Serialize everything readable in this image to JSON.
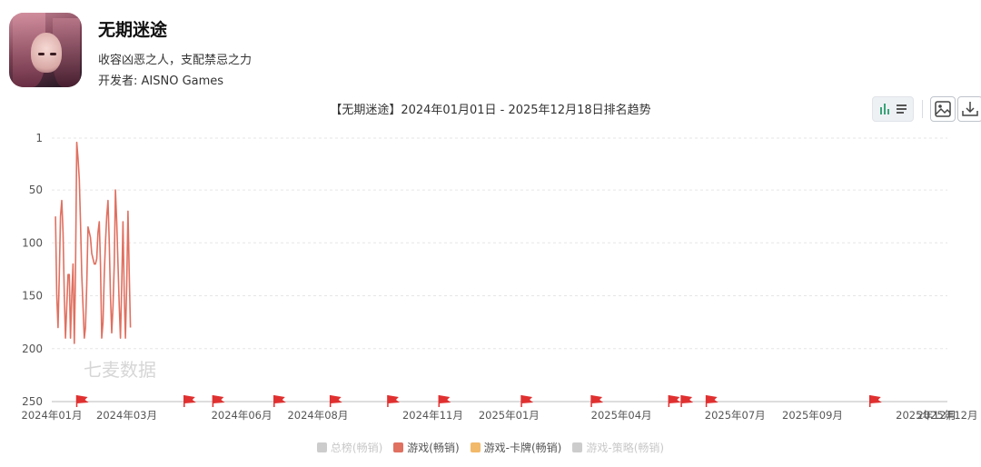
{
  "app": {
    "name": "无期迷途",
    "slogan": "收容凶恶之人，支配禁忌之力",
    "developer": "开发者: AISNO Games"
  },
  "watermark": "七麦数据",
  "colors": {
    "game_grossing": "#e07060",
    "card_grossing": "#f2b96a",
    "disabled": "#cccccc",
    "flag": "#e03030"
  },
  "icons": [
    "chart-type-toggle-icon",
    "save-image-icon",
    "download-icon"
  ],
  "chart_data": {
    "type": "line",
    "title": "【无期迷途】2024年01月01日 - 2025年12月18日排名趋势",
    "y_inverted": true,
    "ylim": [
      1,
      250
    ],
    "y_ticks": [
      "1",
      "50",
      "100",
      "150",
      "200",
      "250"
    ],
    "y_tick_values": [
      1,
      50,
      100,
      150,
      200,
      250
    ],
    "x_tick_labels": [
      "2024年01月",
      "2024年03月",
      "2024年06月",
      "2024年08月",
      "2024年11月",
      "2025年01月",
      "2025年04月",
      "2025年07月",
      "2025年09月",
      "2025年12月"
    ],
    "x_tick_dates": [
      "2024-01-01",
      "2024-03-01",
      "2024-06-01",
      "2024-08-01",
      "2024-11-01",
      "2025-01-01",
      "2025-04-01",
      "2025-07-01",
      "2025-09-01",
      "2025-12-01"
    ],
    "xlim": [
      "2024-01-01",
      "2025-12-18"
    ],
    "grid": true,
    "legend_position": "bottom",
    "event_flags": [
      "2024-01-21",
      "2024-04-16",
      "2024-05-09",
      "2024-06-27",
      "2024-08-11",
      "2024-09-26",
      "2024-11-06",
      "2025-01-11",
      "2025-03-08",
      "2025-05-09",
      "2025-05-19",
      "2025-06-08",
      "2025-10-17"
    ],
    "series": [
      {
        "name": "总榜(畅销)",
        "enabled": false,
        "color": "#cccccc",
        "points": []
      },
      {
        "name": "游戏(畅销)",
        "enabled": true,
        "color": "#e07060",
        "points": [
          [
            "2024-01-04",
            75
          ],
          [
            "2024-01-05",
            150
          ],
          [
            "2024-01-06",
            180
          ],
          [
            "2024-01-07",
            130
          ],
          [
            "2024-01-08",
            75
          ],
          [
            "2024-01-09",
            60
          ],
          [
            "2024-01-10",
            90
          ],
          [
            "2024-01-11",
            150
          ],
          [
            "2024-01-12",
            190
          ],
          [
            "2024-01-13",
            160
          ],
          [
            "2024-01-14",
            130
          ],
          [
            "2024-01-15",
            130
          ],
          [
            "2024-01-16",
            190
          ],
          [
            "2024-01-17",
            150
          ],
          [
            "2024-01-18",
            120
          ],
          [
            "2024-01-19",
            195
          ],
          [
            "2024-01-20",
            130
          ],
          [
            "2024-01-21",
            5
          ],
          [
            "2024-01-22",
            20
          ],
          [
            "2024-01-23",
            40
          ],
          [
            "2024-01-24",
            80
          ],
          [
            "2024-01-25",
            130
          ],
          [
            "2024-01-26",
            160
          ],
          [
            "2024-01-27",
            190
          ],
          [
            "2024-01-28",
            180
          ],
          [
            "2024-01-29",
            140
          ],
          [
            "2024-01-30",
            85
          ],
          [
            "2024-01-31",
            90
          ],
          [
            "2024-02-01",
            95
          ],
          [
            "2024-02-02",
            110
          ],
          [
            "2024-02-03",
            115
          ],
          [
            "2024-02-04",
            120
          ],
          [
            "2024-02-05",
            120
          ],
          [
            "2024-02-06",
            115
          ],
          [
            "2024-02-07",
            90
          ],
          [
            "2024-02-08",
            80
          ],
          [
            "2024-02-09",
            120
          ],
          [
            "2024-02-10",
            190
          ],
          [
            "2024-02-11",
            175
          ],
          [
            "2024-02-12",
            130
          ],
          [
            "2024-02-13",
            100
          ],
          [
            "2024-02-14",
            75
          ],
          [
            "2024-02-15",
            60
          ],
          [
            "2024-02-16",
            100
          ],
          [
            "2024-02-17",
            150
          ],
          [
            "2024-02-18",
            185
          ],
          [
            "2024-02-19",
            160
          ],
          [
            "2024-02-20",
            120
          ],
          [
            "2024-02-21",
            50
          ],
          [
            "2024-02-22",
            80
          ],
          [
            "2024-02-23",
            120
          ],
          [
            "2024-02-24",
            160
          ],
          [
            "2024-02-25",
            190
          ],
          [
            "2024-02-26",
            140
          ],
          [
            "2024-02-27",
            80
          ],
          [
            "2024-02-28",
            150
          ],
          [
            "2024-02-29",
            190
          ],
          [
            "2024-03-01",
            140
          ],
          [
            "2024-03-02",
            70
          ],
          [
            "2024-03-03",
            130
          ],
          [
            "2024-03-04",
            180
          ]
        ]
      },
      {
        "name": "游戏-卡牌(畅销)",
        "enabled": true,
        "color": "#f2b96a",
        "points": []
      },
      {
        "name": "游戏-策略(畅销)",
        "enabled": false,
        "color": "#cccccc",
        "points": []
      }
    ]
  }
}
